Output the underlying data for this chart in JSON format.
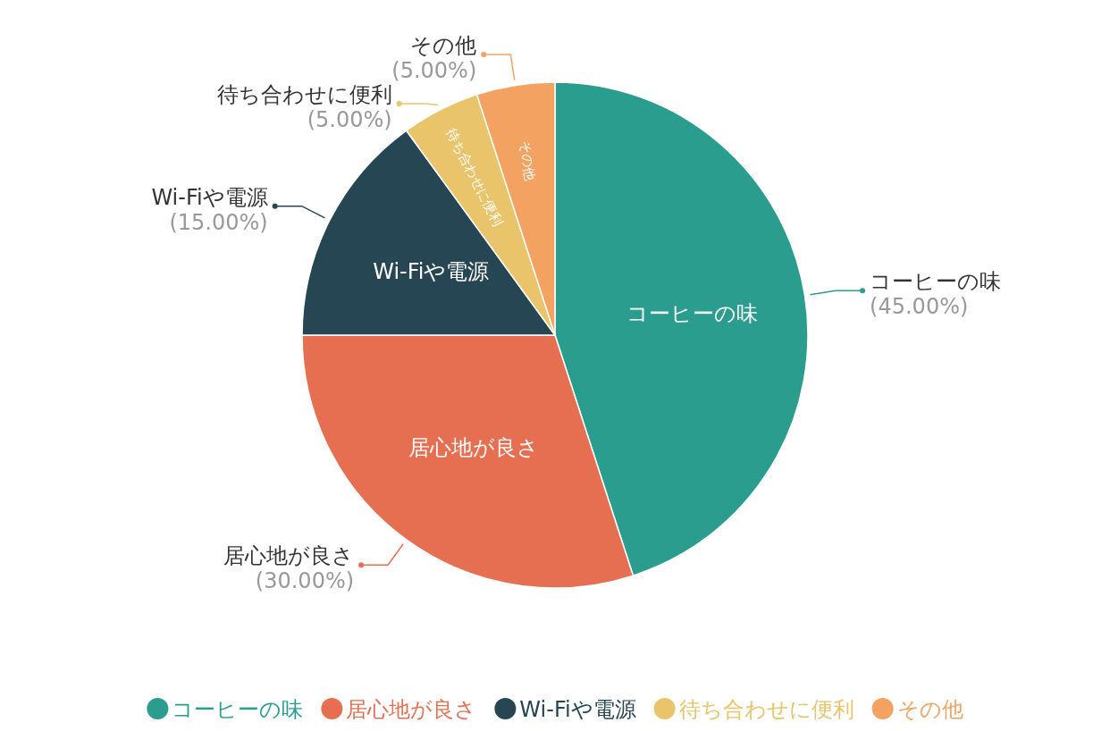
{
  "chart_data": {
    "type": "pie",
    "categories": [
      "コーヒーの味",
      "居心地が良さ",
      "Wi-Fiや電源",
      "待ち合わせに便利",
      "その他"
    ],
    "values": [
      45,
      30,
      15,
      5,
      5
    ],
    "colors": [
      "#2a9d8f",
      "#e76f51",
      "#264653",
      "#e9c46a",
      "#f4a261"
    ],
    "value_labels": [
      "(45.00%)",
      "(30.00%)",
      "(15.00%)",
      "(5.00%)",
      "(5.00%)"
    ],
    "legend": "bottom"
  }
}
